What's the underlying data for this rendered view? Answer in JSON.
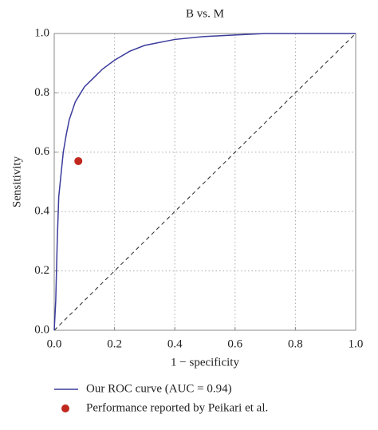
{
  "chart_data": {
    "type": "line",
    "title": "B vs. M",
    "xlabel": "1 − specificity",
    "ylabel": "Sensitivity",
    "xlim": [
      0,
      1
    ],
    "ylim": [
      0,
      1
    ],
    "xticks": [
      {
        "value": 0,
        "label": "0.0"
      },
      0.2,
      0.4,
      0.6,
      0.8,
      {
        "value": 1,
        "label": "1.0"
      }
    ],
    "yticks": [
      {
        "value": 0,
        "label": "0.0"
      },
      0.2,
      0.4,
      0.6,
      0.8,
      {
        "value": 1,
        "label": "1.0"
      }
    ],
    "grid": true,
    "legend": "bottom",
    "series": [
      {
        "name": "Our ROC curve (AUC = 0.94)",
        "color": "#3b3b9c",
        "x": [
          0,
          0.005,
          0.01,
          0.015,
          0.02,
          0.03,
          0.04,
          0.05,
          0.07,
          0.1,
          0.13,
          0.16,
          0.2,
          0.25,
          0.3,
          0.4,
          0.5,
          0.6,
          0.7,
          1.0
        ],
        "values": [
          0,
          0.1,
          0.3,
          0.45,
          0.5,
          0.6,
          0.66,
          0.71,
          0.77,
          0.82,
          0.85,
          0.88,
          0.91,
          0.94,
          0.96,
          0.98,
          0.99,
          0.995,
          1.0,
          1.0
        ]
      },
      {
        "name": "Performance reported by Peikari et al.",
        "color": "#c0281e",
        "type": "scatter",
        "x": [
          0.08
        ],
        "values": [
          0.57
        ]
      }
    ]
  }
}
